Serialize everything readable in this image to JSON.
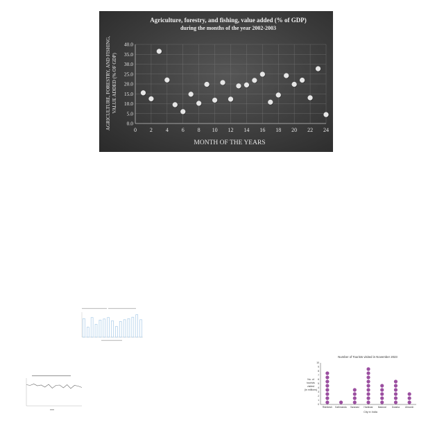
{
  "colors": {
    "panel_bg": "#474747",
    "point_fill": "#e6e6e6",
    "axis_text": "#e8e8e8",
    "grid": "#7a7a7a",
    "thumb_bar": "#9fc6e6",
    "thumb_line": "#555555",
    "dot_purple": "#9b4fa0"
  },
  "chart_data": [
    {
      "type": "scatter",
      "title_line1": "Agriculture, forestry, and fishing, value added (% of GDP)",
      "title_line2": "during the months of the year 2002-2003",
      "xlabel": "MONTH OF THE YEARS",
      "ylabel_line1": "AGRICULTURE, FORESTRY, AND FISHING,",
      "ylabel_line2": "VALUE ADDED (% OF GDP)",
      "xlim": [
        0,
        24
      ],
      "ylim": [
        0,
        40
      ],
      "x_ticks": [
        "0",
        "2",
        "4",
        "6",
        "8",
        "10",
        "12",
        "14",
        "16",
        "18",
        "20",
        "22",
        "24"
      ],
      "y_ticks": [
        "0.0",
        "5.0",
        "10.0",
        "15.0",
        "20.0",
        "25.0",
        "30.0",
        "35.0",
        "40.0"
      ],
      "grid": true,
      "x": [
        1,
        2,
        3,
        4,
        5,
        6,
        7,
        8,
        9,
        10,
        11,
        12,
        13,
        14,
        15,
        16,
        17,
        18,
        19,
        20,
        21,
        22,
        23,
        24
      ],
      "y": [
        15.5,
        12.5,
        36.5,
        22.0,
        9.5,
        6.0,
        14.8,
        10.2,
        19.8,
        11.8,
        20.7,
        12.3,
        19.0,
        19.5,
        21.8,
        24.9,
        10.8,
        14.4,
        24.2,
        19.8,
        21.9,
        13.0,
        27.7,
        4.5
      ]
    },
    {
      "type": "bar",
      "values": [
        5.2,
        2.8,
        5.5,
        3.6,
        4.8,
        5.1,
        5.5,
        4.6,
        3.0,
        4.4,
        4.9,
        5.2,
        5.6,
        6.3,
        4.9
      ],
      "ylim": [
        0,
        7
      ]
    },
    {
      "type": "line",
      "values": [
        6.1,
        5.9,
        6.3,
        5.8,
        6.0,
        5.4,
        6.2,
        5.1,
        5.9,
        6.0,
        5.2,
        6.1,
        5.0,
        5.9,
        5.7,
        5.3
      ],
      "ylim": [
        0,
        8
      ]
    },
    {
      "type": "scatter",
      "title": "Number of Tourists visited in November 2023",
      "xlabel": "City in India",
      "ylabel": [
        "No. of",
        "tourists",
        "visited",
        "(in millions)"
      ],
      "categories": [
        "Rishikesh",
        "Kathmandu",
        "Varanasi",
        "Haridwar",
        "Madurai",
        "Dwarka",
        "Almorah"
      ],
      "values": [
        8,
        1,
        4,
        9,
        5,
        6,
        3
      ],
      "ylim": [
        0,
        10
      ],
      "y_ticks": [
        "0",
        "1",
        "2",
        "3",
        "4",
        "5",
        "6",
        "7",
        "8",
        "9",
        "10"
      ]
    }
  ]
}
